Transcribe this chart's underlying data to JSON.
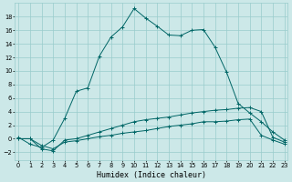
{
  "xlabel": "Humidex (Indice chaleur)",
  "bg_color": "#cce8e8",
  "grid_color": "#99cccc",
  "line_color": "#006666",
  "x_ticks": [
    0,
    1,
    2,
    3,
    4,
    5,
    6,
    7,
    8,
    9,
    10,
    11,
    12,
    13,
    14,
    15,
    16,
    17,
    18,
    19,
    20,
    21,
    22,
    23
  ],
  "y_ticks": [
    -2,
    0,
    2,
    4,
    6,
    8,
    10,
    12,
    14,
    16,
    18
  ],
  "xlim": [
    -0.3,
    23.3
  ],
  "ylim": [
    -3.2,
    20.0
  ],
  "series1_x": [
    0,
    1,
    2,
    3,
    4,
    5,
    6,
    7,
    8,
    9,
    10,
    11,
    12,
    13,
    14,
    15,
    16,
    17,
    18,
    19,
    20,
    21,
    22,
    23
  ],
  "series1_y": [
    0.2,
    -0.8,
    -1.3,
    -0.2,
    3.0,
    7.0,
    7.5,
    12.2,
    15.0,
    16.5,
    19.2,
    17.8,
    16.6,
    15.3,
    15.2,
    16.0,
    16.1,
    13.5,
    9.8,
    5.2,
    3.8,
    2.5,
    1.0,
    -0.2
  ],
  "series2_x": [
    0,
    1,
    2,
    3,
    4,
    5,
    6,
    7,
    8,
    9,
    10,
    11,
    12,
    13,
    14,
    15,
    16,
    17,
    18,
    19,
    20,
    21,
    22,
    23
  ],
  "series2_y": [
    0.0,
    0.0,
    -1.5,
    -1.8,
    -0.2,
    0.0,
    0.5,
    1.0,
    1.5,
    2.0,
    2.5,
    2.8,
    3.0,
    3.2,
    3.5,
    3.8,
    4.0,
    4.2,
    4.3,
    4.5,
    4.6,
    4.0,
    0.2,
    -0.5
  ],
  "series3_x": [
    0,
    1,
    2,
    3,
    4,
    5,
    6,
    7,
    8,
    9,
    10,
    11,
    12,
    13,
    14,
    15,
    16,
    17,
    18,
    19,
    20,
    21,
    22,
    23
  ],
  "series3_y": [
    0.0,
    0.0,
    -1.0,
    -1.5,
    -0.5,
    -0.3,
    0.0,
    0.3,
    0.5,
    0.8,
    1.0,
    1.2,
    1.5,
    1.8,
    2.0,
    2.2,
    2.5,
    2.5,
    2.6,
    2.8,
    2.9,
    0.5,
    -0.2,
    -0.8
  ],
  "xlabel_fontsize": 6.0,
  "tick_fontsize": 4.8,
  "marker_size": 3.0,
  "linewidth": 0.7
}
